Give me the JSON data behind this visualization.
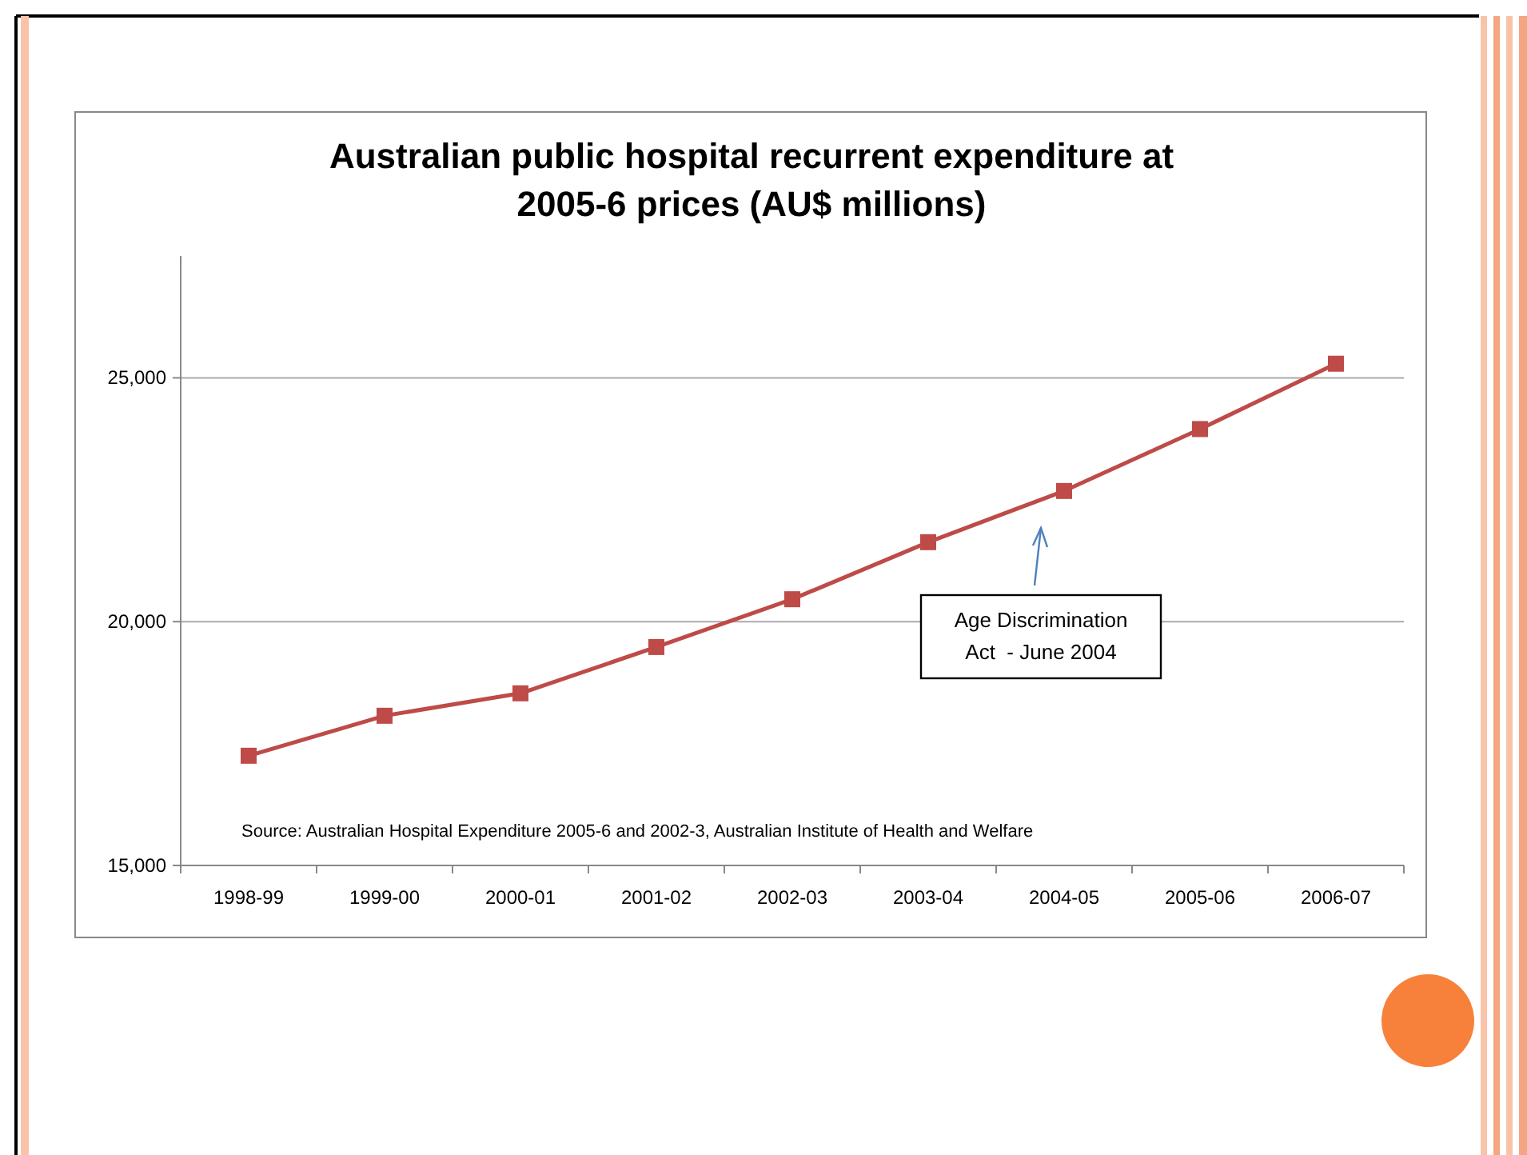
{
  "chart_data": {
    "type": "line",
    "title": "Australian public hospital recurrent expenditure at 2005-6 prices  (AU$ millions)",
    "categories": [
      "1998-99",
      "1999-00",
      "2000-01",
      "2001-02",
      "2002-03",
      "2003-04",
      "2004-05",
      "2005-06",
      "2006-07"
    ],
    "series": [
      {
        "color": "#be4b48",
        "values": [
          17250,
          18070,
          18530,
          19480,
          20460,
          21630,
          22680,
          23950,
          25290
        ]
      }
    ],
    "ylim": [
      15000,
      27500
    ],
    "yticks": [
      {
        "value": 15000,
        "label": "15,000"
      },
      {
        "value": 20000,
        "label": "20,000"
      },
      {
        "value": 25000,
        "label": "25,000"
      }
    ],
    "grid": "y",
    "marker": "square",
    "line_style": "solid",
    "annotations": [
      "Age Discrimination\nAct  - June 2004",
      "Source:  Australian Hospital Expenditure 2005-6 and 2002-3, Australian Institute of Health and Welfare"
    ]
  }
}
